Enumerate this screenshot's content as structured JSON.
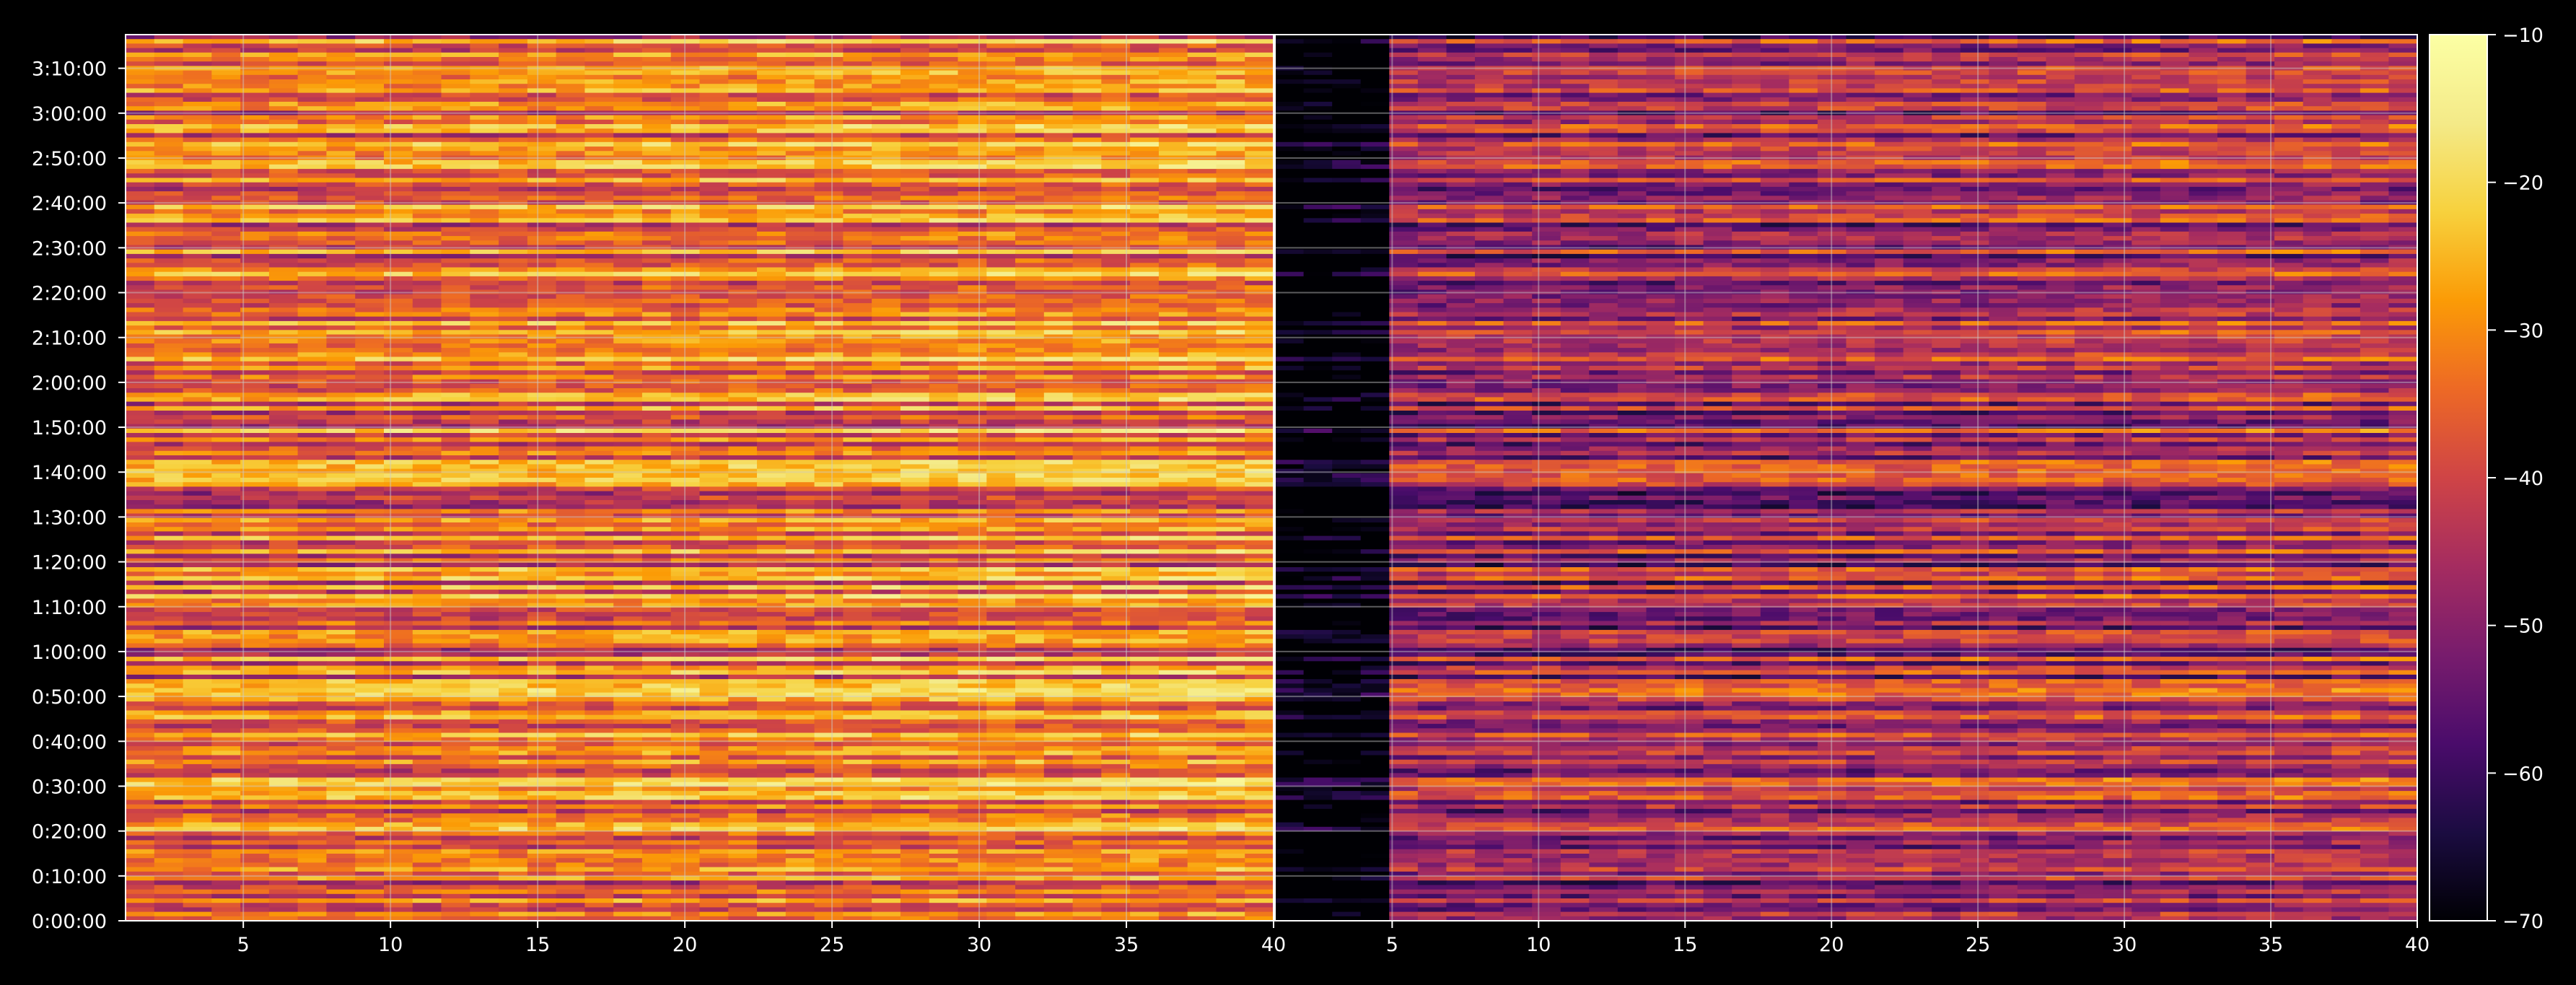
{
  "chart_data": {
    "type": "heatmap",
    "title": "",
    "panels": [
      {
        "name": "",
        "x_range": [
          1,
          40
        ],
        "x_ticks": [
          "5",
          "10",
          "15",
          "20",
          "25",
          "30",
          "35",
          "40"
        ]
      },
      {
        "name": "",
        "x_range": [
          1,
          40
        ],
        "x_ticks": [
          "5",
          "10",
          "15",
          "20",
          "25",
          "30",
          "35",
          "40"
        ]
      }
    ],
    "xlabel": "",
    "ylabel": "",
    "y_range_seconds": [
      0,
      11850
    ],
    "y_ticks": [
      "0:00:00",
      "0:10:00",
      "0:20:00",
      "0:30:00",
      "0:40:00",
      "0:50:00",
      "1:00:00",
      "1:10:00",
      "1:20:00",
      "1:30:00",
      "1:40:00",
      "1:50:00",
      "2:00:00",
      "2:10:00",
      "2:20:00",
      "2:30:00",
      "2:40:00",
      "2:50:00",
      "3:00:00",
      "3:10:00"
    ],
    "colorbar": {
      "colormap": "inferno",
      "range": [
        -70,
        -10
      ],
      "ticks": [
        "−70",
        "−60",
        "−50",
        "−40",
        "−30",
        "−20",
        "−10"
      ]
    },
    "grid": true,
    "colors": {
      "background": "#000000",
      "text": "#ffffff",
      "grid": "#cccccc"
    }
  }
}
